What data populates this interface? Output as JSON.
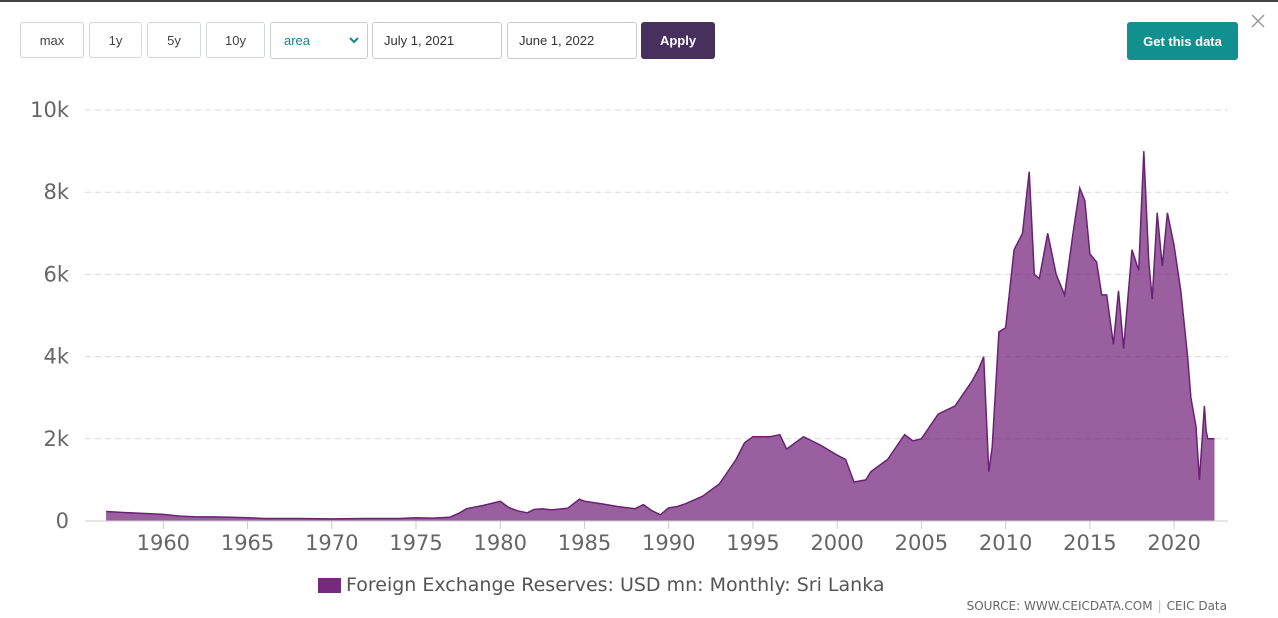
{
  "toolbar": {
    "ranges": [
      "max",
      "1y",
      "5y",
      "10y"
    ],
    "chart_type": "area",
    "start_date": "July 1, 2021",
    "end_date": "June 1, 2022",
    "apply_label": "Apply",
    "get_data_label": "Get this data"
  },
  "colors": {
    "series": "#77297f",
    "apply": "#472f5e",
    "get_data": "#128f8f"
  },
  "chart_data": {
    "type": "area",
    "title": "",
    "xlabel": "",
    "ylabel": "",
    "ylim": [
      0,
      10000
    ],
    "xlim": [
      1956.5,
      2022.5
    ],
    "y_ticks": [
      "0",
      "2k",
      "4k",
      "6k",
      "8k",
      "10k"
    ],
    "x_ticks": [
      "1960",
      "1965",
      "1970",
      "1975",
      "1980",
      "1985",
      "1990",
      "1995",
      "2000",
      "2005",
      "2010",
      "2015",
      "2020"
    ],
    "grid": true,
    "legend": "bottom-center",
    "series": [
      {
        "name": "Foreign Exchange Reserves: USD mn: Monthly: Sri Lanka",
        "x": [
          1956.6,
          1958,
          1960,
          1961,
          1962,
          1963,
          1964,
          1965,
          1966,
          1968,
          1970,
          1972,
          1974,
          1975,
          1976,
          1977,
          1977.6,
          1978,
          1979,
          1980,
          1980.5,
          1981,
          1981.6,
          1982,
          1982.5,
          1983,
          1984,
          1984.7,
          1985,
          1986,
          1987,
          1988,
          1988.5,
          1989,
          1989.5,
          1990,
          1990.5,
          1991,
          1992,
          1993,
          1994,
          1994.5,
          1995,
          1996,
          1996.6,
          1997,
          1998,
          1999,
          2000,
          2000.5,
          2001,
          2001.7,
          2002,
          2003,
          2003.5,
          2004,
          2004.5,
          2005,
          2006,
          2007,
          2007.5,
          2008,
          2008.4,
          2008.7,
          2009,
          2009.2,
          2009.6,
          2010,
          2010.5,
          2011,
          2011.4,
          2011.7,
          2012,
          2012.5,
          2013,
          2013.5,
          2014,
          2014.4,
          2014.7,
          2015,
          2015.4,
          2015.7,
          2016,
          2016.4,
          2016.7,
          2017,
          2017.5,
          2017.9,
          2018.2,
          2018.5,
          2018.7,
          2019,
          2019.3,
          2019.6,
          2020,
          2020.4,
          2020.8,
          2021,
          2021.3,
          2021.5,
          2021.8,
          2021.9,
          2022,
          2022.2,
          2022.4
        ],
        "values": [
          230,
          200,
          160,
          120,
          100,
          100,
          90,
          80,
          60,
          60,
          50,
          60,
          60,
          80,
          70,
          90,
          200,
          300,
          380,
          480,
          330,
          250,
          200,
          280,
          300,
          270,
          310,
          530,
          480,
          420,
          350,
          300,
          400,
          250,
          150,
          320,
          350,
          420,
          600,
          900,
          1500,
          1900,
          2050,
          2050,
          2100,
          1750,
          2050,
          1850,
          1600,
          1500,
          950,
          1000,
          1200,
          1500,
          1800,
          2100,
          1950,
          2000,
          2600,
          2800,
          3100,
          3400,
          3700,
          4000,
          1200,
          1800,
          4600,
          4700,
          6600,
          7000,
          8500,
          6000,
          5900,
          7000,
          6000,
          5500,
          7000,
          8100,
          7800,
          6500,
          6300,
          5500,
          5500,
          4300,
          5600,
          4200,
          6600,
          6100,
          9000,
          6300,
          5400,
          7500,
          6200,
          7500,
          6700,
          5600,
          4000,
          3000,
          2300,
          1000,
          2800,
          2200,
          2000,
          2000,
          2000
        ]
      }
    ]
  },
  "legend": {
    "label": "Foreign Exchange Reserves: USD mn: Monthly: Sri Lanka"
  },
  "source": {
    "left": "SOURCE: WWW.CEICDATA.COM",
    "sep": "|",
    "right": "CEIC Data"
  }
}
